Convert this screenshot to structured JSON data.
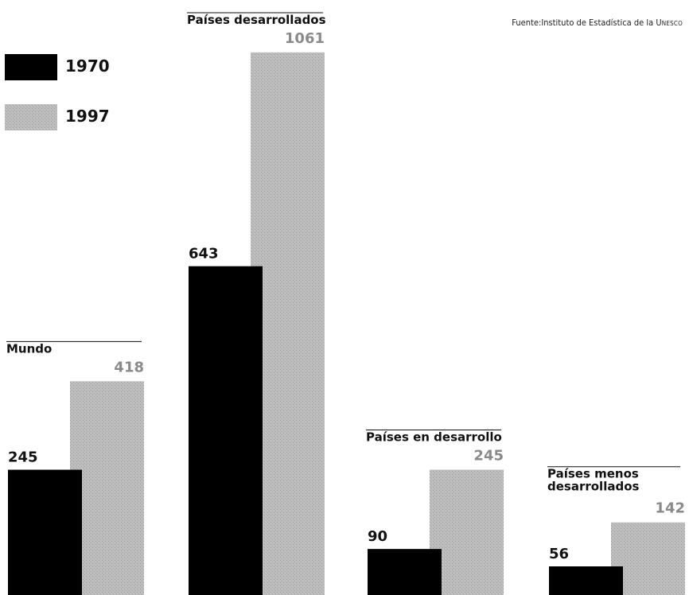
{
  "source": "Fuente:Instituto de Estadística de la UNESCO",
  "colors": {
    "series_1970": "#000000",
    "series_1997": "#b3b3b3",
    "label_1997": "#8a8a8a"
  },
  "chart_data": {
    "type": "bar",
    "categories": [
      "Mundo",
      "Países desarrollados",
      "Países en desarrollo",
      "Países menos desarrollados"
    ],
    "series": [
      {
        "name": "1970",
        "values": [
          245,
          643,
          90,
          56
        ]
      },
      {
        "name": "1997",
        "values": [
          418,
          1061,
          245,
          142
        ]
      }
    ],
    "legend": [
      "1970",
      "1997"
    ],
    "legend_position": "top-left",
    "grid": false,
    "title": "",
    "xlabel": "",
    "ylabel": "",
    "ylim": [
      0,
      1061
    ]
  }
}
